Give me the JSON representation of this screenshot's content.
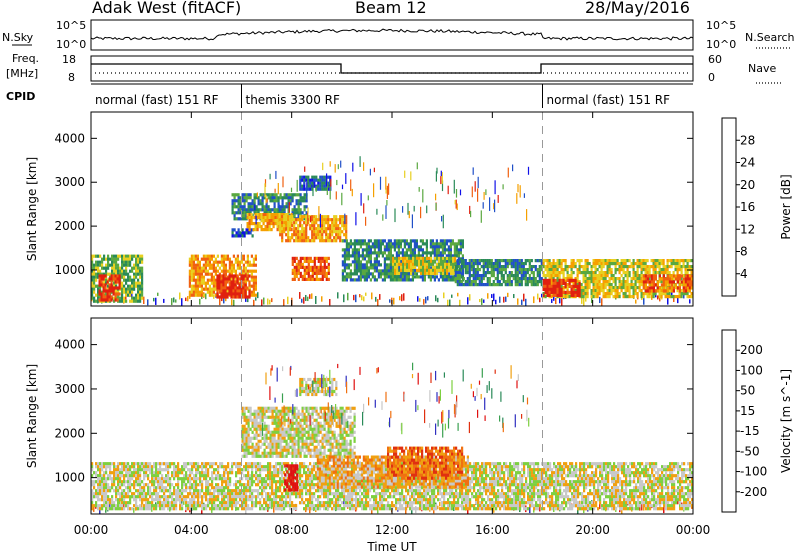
{
  "header": {
    "station": "Adak West (fitACF)",
    "beam": "Beam 12",
    "date": "28/May/2016"
  },
  "nsky_panel": {
    "left_label": "N.Sky",
    "right_label": "N.Search",
    "left_ticks": [
      "10^5",
      "10^0"
    ],
    "right_ticks": [
      "10^5",
      "10^0"
    ]
  },
  "freq_panel": {
    "left_label_line1": "Freq.",
    "left_label_line2": "[MHz]",
    "right_label": "Nave",
    "left_ticks": [
      "18",
      "8"
    ],
    "right_ticks": [
      "60",
      "0"
    ]
  },
  "cpid_panel": {
    "label": "CPID",
    "segments": [
      {
        "label": "normal (fast) 151 RF",
        "start": 0,
        "end": 6
      },
      {
        "label": "themis 3300 RF",
        "start": 6,
        "end": 18
      },
      {
        "label": "normal (fast) 151 RF",
        "start": 18,
        "end": 24
      }
    ]
  },
  "x_axis": {
    "label": "Time UT",
    "ticks": [
      "00:00",
      "04:00",
      "08:00",
      "12:00",
      "16:00",
      "20:00",
      "00:00"
    ]
  },
  "chart_data": [
    {
      "type": "heatmap",
      "title": "Power",
      "ylabel": "Slant Range [km]",
      "y_ticks": [
        "1000",
        "2000",
        "3000",
        "4000"
      ],
      "ylim": [
        180,
        4600
      ],
      "xlim": [
        0,
        24
      ],
      "colorbar": {
        "label": "Power [dB]",
        "ticks": [
          "4",
          "8",
          "12",
          "16",
          "20",
          "24",
          "28"
        ],
        "colors": [
          "#1010e8",
          "#2050c8",
          "#2a8a58",
          "#5aa840",
          "#e8d020",
          "#f5a000",
          "#f06010",
          "#e02010"
        ]
      },
      "regions": [
        {
          "t0": 0.0,
          "t1": 2.0,
          "r0": 300,
          "r1": 1350,
          "level": 3
        },
        {
          "t0": 0.3,
          "t1": 1.1,
          "r0": 300,
          "r1": 900,
          "level": 7
        },
        {
          "t0": 3.9,
          "t1": 6.6,
          "r0": 400,
          "r1": 1350,
          "level": 5
        },
        {
          "t0": 5.0,
          "t1": 6.3,
          "r0": 400,
          "r1": 900,
          "level": 7
        },
        {
          "t0": 5.6,
          "t1": 6.4,
          "r0": 1750,
          "r1": 1950,
          "level": 1
        },
        {
          "t0": 5.6,
          "t1": 8.6,
          "r0": 2200,
          "r1": 2750,
          "level": 2
        },
        {
          "t0": 6.2,
          "t1": 8.0,
          "r0": 1900,
          "r1": 2300,
          "level": 5
        },
        {
          "t0": 7.5,
          "t1": 10.2,
          "r0": 1650,
          "r1": 2250,
          "level": 5
        },
        {
          "t0": 8.0,
          "t1": 9.5,
          "r0": 800,
          "r1": 1300,
          "level": 6
        },
        {
          "t0": 10.0,
          "t1": 14.8,
          "r0": 800,
          "r1": 1700,
          "level": 2
        },
        {
          "t0": 12.0,
          "t1": 14.5,
          "r0": 900,
          "r1": 1300,
          "level": 4
        },
        {
          "t0": 14.5,
          "t1": 18.0,
          "r0": 700,
          "r1": 1250,
          "level": 2
        },
        {
          "t0": 18.0,
          "t1": 24.0,
          "r0": 400,
          "r1": 1250,
          "level": 4
        },
        {
          "t0": 18.0,
          "t1": 19.5,
          "r0": 400,
          "r1": 800,
          "level": 7
        },
        {
          "t0": 22.0,
          "t1": 24.0,
          "r0": 500,
          "r1": 900,
          "level": 6
        },
        {
          "t0": 8.3,
          "t1": 9.5,
          "r0": 2850,
          "r1": 3150,
          "level": 1
        }
      ]
    },
    {
      "type": "heatmap",
      "title": "Velocity",
      "ylabel": "Slant Range [km]",
      "y_ticks": [
        "1000",
        "2000",
        "3000",
        "4000"
      ],
      "ylim": [
        180,
        4600
      ],
      "xlim": [
        0,
        24
      ],
      "colorbar": {
        "label": "Velocity [m s^-1]",
        "ticks": [
          "200",
          "100",
          "50",
          "15",
          "-15",
          "-50",
          "-100",
          "-200"
        ],
        "colors": [
          "#3030c0",
          "#2a8a58",
          "#3aa050",
          "#7dd040",
          "#c8c8c8",
          "#f0a010",
          "#f07010",
          "#e03010",
          "#e01010"
        ]
      },
      "regions": [
        {
          "t0": 0.0,
          "t1": 24.0,
          "r0": 300,
          "r1": 1350,
          "level": 4
        },
        {
          "t0": 6.0,
          "t1": 10.5,
          "r0": 1500,
          "r1": 2600,
          "level": 4
        },
        {
          "t0": 8.3,
          "t1": 9.8,
          "r0": 2900,
          "r1": 3250,
          "level": 4
        },
        {
          "t0": 7.7,
          "t1": 8.2,
          "r0": 700,
          "r1": 1300,
          "level": 8
        },
        {
          "t0": 9.0,
          "t1": 15.0,
          "r0": 800,
          "r1": 1500,
          "level": 5
        },
        {
          "t0": 11.8,
          "t1": 14.8,
          "r0": 1000,
          "r1": 1700,
          "level": 6
        }
      ]
    }
  ]
}
